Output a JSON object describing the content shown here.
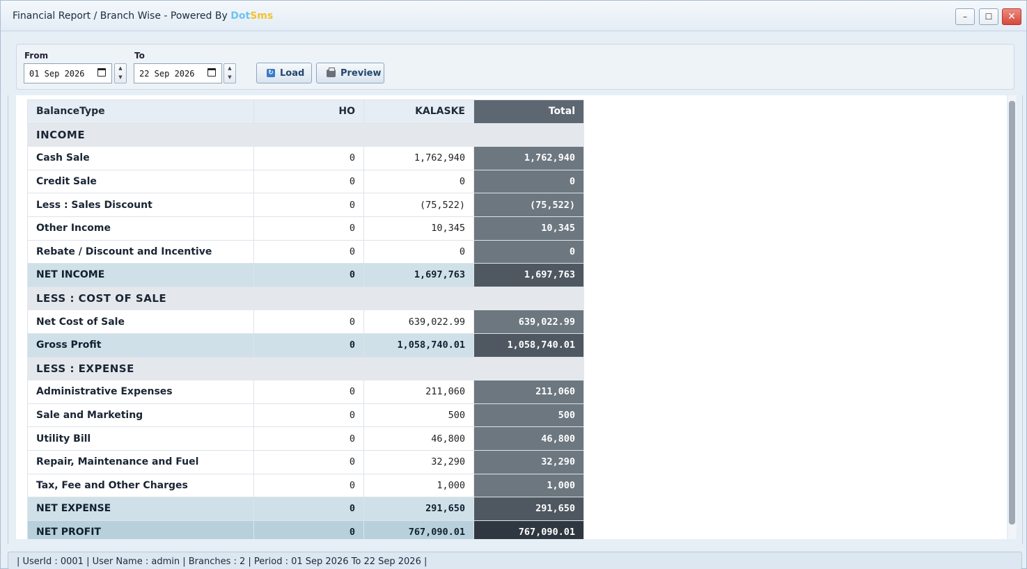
{
  "window": {
    "title": "Financial Report / Branch Wise - Powered By ",
    "brand_part1": "Dot",
    "brand_part2": "Sms",
    "minimize_label": "–",
    "maximize_label": "☐",
    "close_label": "✕"
  },
  "filters": {
    "from_label": "From",
    "from_value": "01 Sep 2026",
    "to_label": "To",
    "to_value": "22 Sep 2026",
    "load_label": "Load",
    "preview_label": "Preview"
  },
  "table": {
    "headers": [
      "BalanceType",
      "HO",
      "KALASKE",
      "Total"
    ],
    "rows": [
      {
        "type": "section",
        "name": "INCOME"
      },
      {
        "type": "row",
        "name": "Cash Sale",
        "ho": "0",
        "kalaske": "1,762,940",
        "total": "1,762,940"
      },
      {
        "type": "row",
        "name": "Credit Sale",
        "ho": "0",
        "kalaske": "0",
        "total": "0"
      },
      {
        "type": "row",
        "name": "Less : Sales Discount",
        "ho": "0",
        "kalaske": "(75,522)",
        "total": "(75,522)"
      },
      {
        "type": "row",
        "name": "Other Income",
        "ho": "0",
        "kalaske": "10,345",
        "total": "10,345"
      },
      {
        "type": "row",
        "name": "Rebate / Discount and Incentive",
        "ho": "0",
        "kalaske": "0",
        "total": "0"
      },
      {
        "type": "subtotal",
        "name": "NET INCOME",
        "ho": "0",
        "kalaske": "1,697,763",
        "total": "1,697,763"
      },
      {
        "type": "section",
        "name": "LESS : COST OF SALE"
      },
      {
        "type": "row",
        "name": "Net Cost of Sale",
        "ho": "0",
        "kalaske": "639,022.99",
        "total": "639,022.99"
      },
      {
        "type": "subtotal",
        "name": "Gross Profit",
        "ho": "0",
        "kalaske": "1,058,740.01",
        "total": "1,058,740.01"
      },
      {
        "type": "section",
        "name": "LESS : EXPENSE"
      },
      {
        "type": "row",
        "name": "Administrative Expenses",
        "ho": "0",
        "kalaske": "211,060",
        "total": "211,060"
      },
      {
        "type": "row",
        "name": "Sale and Marketing",
        "ho": "0",
        "kalaske": "500",
        "total": "500"
      },
      {
        "type": "row",
        "name": "Utility Bill",
        "ho": "0",
        "kalaske": "46,800",
        "total": "46,800"
      },
      {
        "type": "row",
        "name": "Repair, Maintenance and Fuel",
        "ho": "0",
        "kalaske": "32,290",
        "total": "32,290"
      },
      {
        "type": "row",
        "name": "Tax, Fee and Other Charges",
        "ho": "0",
        "kalaske": "1,000",
        "total": "1,000"
      },
      {
        "type": "subtotal",
        "name": "NET EXPENSE",
        "ho": "0",
        "kalaske": "291,650",
        "total": "291,650"
      },
      {
        "type": "final",
        "name": "NET PROFIT",
        "ho": "0",
        "kalaske": "767,090.01",
        "total": "767,090.01"
      }
    ]
  },
  "status": {
    "text": "| UserId : 0001  |  User Name : admin  |  Branches : 2  |  Period : 01 Sep 2026 To 22 Sep 2026 |"
  }
}
